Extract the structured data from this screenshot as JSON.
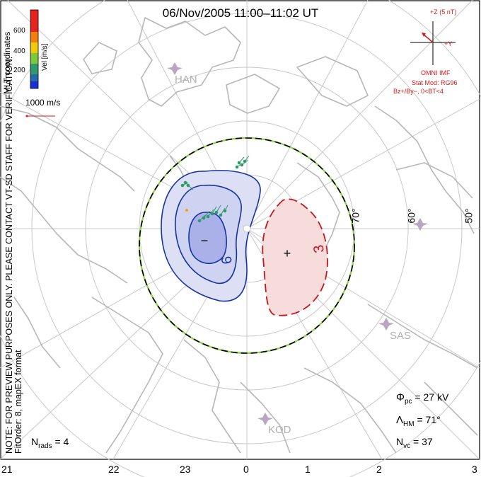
{
  "header": {
    "title": "06/Nov/2005 11:00–11:02 UT"
  },
  "coordinates_label": "MLT coordinates",
  "note": {
    "line1": "NOTE: FOR PREVIEW PURPOSES ONLY. PLEASE CONTACT VT-SD STAFF FOR VERIFICATION.",
    "line2": "FitOrder: 8, mapEX format"
  },
  "velocity_scale": {
    "label": "Vel [m/s]",
    "ticks": [
      "600",
      "400",
      "200"
    ],
    "colors": [
      "#e8231e",
      "#f07f10",
      "#f0c90a",
      "#7cc93c",
      "#2f9a6b",
      "#246aa8",
      "#1b2fd6"
    ],
    "reference_vector": "1000 m/s"
  },
  "imf": {
    "axis_z": "+Z (5 nT)",
    "axis_y": "+Y",
    "source": "OMNI IMF",
    "model": "Stat Mod: RG96",
    "condition": "Bz+/By−, 0<BT<4"
  },
  "stations": [
    "HAN",
    "SAS",
    "KOD"
  ],
  "latitude_labels": [
    "70°",
    "60°",
    "50°"
  ],
  "mlt_labels": [
    "21",
    "22",
    "23",
    "0",
    "1",
    "2",
    "3"
  ],
  "contours": {
    "dusk_label": "6",
    "dawn_label": "3"
  },
  "statistics": {
    "phi_pc": "= 27 kV",
    "lambda_hm": "= 71°",
    "n_vc": "= 37",
    "n_rads": "= 4"
  },
  "colors": {
    "coast": "#b7b7b7",
    "grid": "#c8c8c8",
    "negative_cell": "#1633a3",
    "positive_cell": "#c8161b",
    "imf_red": "#d21a1a"
  }
}
